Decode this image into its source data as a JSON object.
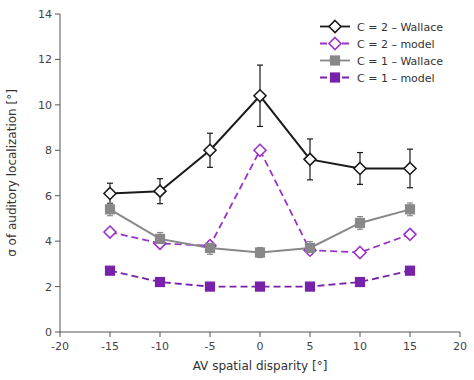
{
  "chart_data": {
    "type": "line",
    "x": [
      -15,
      -10,
      -5,
      0,
      5,
      10,
      15
    ],
    "xlim": [
      -20,
      20
    ],
    "ylim": [
      0,
      14
    ],
    "xticks": [
      -20,
      -15,
      -10,
      -5,
      0,
      5,
      10,
      15,
      20
    ],
    "yticks": [
      0,
      2,
      4,
      6,
      8,
      10,
      12,
      14
    ],
    "xlabel": "AV spatial disparity [°]",
    "ylabel": "σ of auditory localization [°]",
    "legend": "upper right",
    "grid": false,
    "series": [
      {
        "name": "C = 2 – Wallace",
        "color": "#1a1a1a",
        "marker": "open-diamond",
        "line_style": "solid",
        "values": [
          6.1,
          6.2,
          8.0,
          10.4,
          7.6,
          7.2,
          7.2
        ],
        "errors": [
          0.45,
          0.55,
          0.75,
          1.35,
          0.9,
          0.7,
          0.85
        ]
      },
      {
        "name": "C = 2 – model",
        "color": "#9933cc",
        "marker": "open-diamond",
        "line_style": "dashed",
        "values": [
          4.4,
          3.9,
          3.8,
          8.0,
          3.6,
          3.5,
          4.3
        ]
      },
      {
        "name": "C = 1 – Wallace",
        "color": "#888888",
        "marker": "square",
        "line_style": "solid",
        "values": [
          5.4,
          4.1,
          3.7,
          3.5,
          3.7,
          4.8,
          5.4
        ],
        "errors": [
          0.28,
          0.28,
          0.28,
          0.22,
          0.28,
          0.28,
          0.28
        ]
      },
      {
        "name": "C = 1 – model",
        "color": "#7722aa",
        "marker": "square",
        "line_style": "dashed",
        "values": [
          2.7,
          2.2,
          2.0,
          2.0,
          2.0,
          2.2,
          2.7
        ]
      }
    ]
  }
}
